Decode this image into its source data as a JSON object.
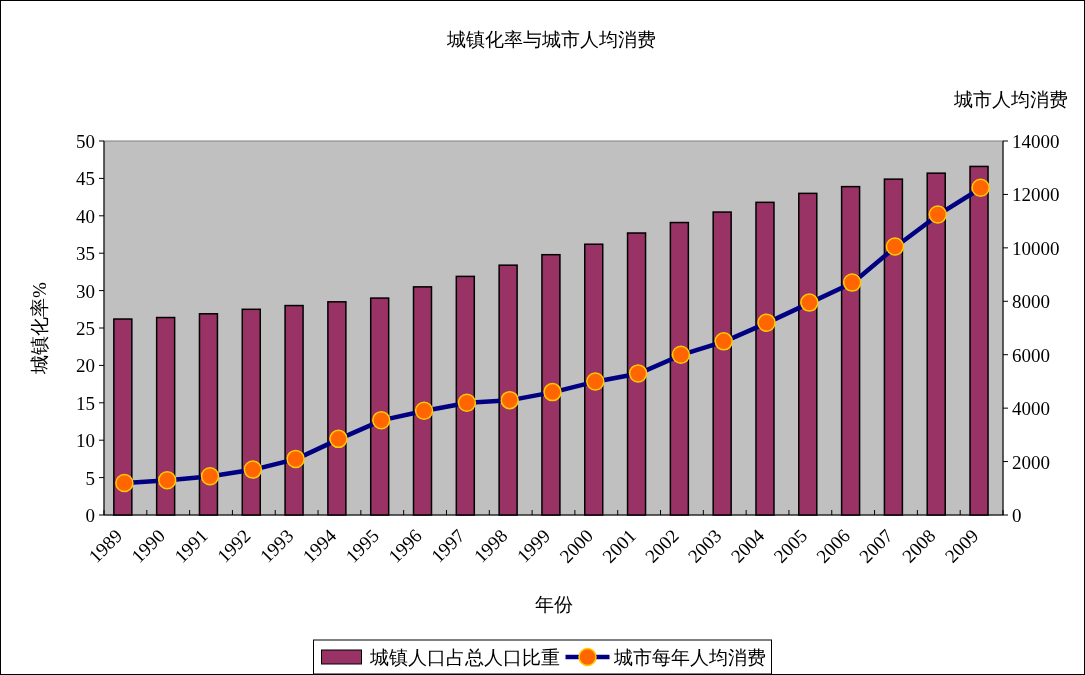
{
  "chart_data": {
    "type": "bar",
    "title": "城镇化率与城市人均消费",
    "xlabel": "年份",
    "ylabel": "城镇化率%",
    "y2label": "城市人均消费",
    "categories": [
      "1989",
      "1990",
      "1991",
      "1992",
      "1993",
      "1994",
      "1995",
      "1996",
      "1997",
      "1998",
      "1999",
      "2000",
      "2001",
      "2002",
      "2003",
      "2004",
      "2005",
      "2006",
      "2007",
      "2008",
      "2009"
    ],
    "series": [
      {
        "name": "城镇人口占总人口比重",
        "color": "#993366",
        "values": [
          26.2,
          26.4,
          26.9,
          27.5,
          28.0,
          28.5,
          29.0,
          30.5,
          31.9,
          33.4,
          34.8,
          36.2,
          37.7,
          39.1,
          40.5,
          41.8,
          43.0,
          43.9,
          44.9,
          45.7,
          46.6
        ]
      },
      {
        "name": "城市每年人均消费",
        "type": "line",
        "axis": "y2",
        "color": "#000080",
        "marker": "circle",
        "values": [
          1200,
          1300,
          1450,
          1700,
          2100,
          2850,
          3550,
          3900,
          4200,
          4300,
          4600,
          5000,
          5300,
          6000,
          6500,
          7200,
          7950,
          8700,
          10050,
          11250,
          12250
        ]
      }
    ],
    "ylim": [
      0,
      50
    ],
    "yticks": [
      0,
      5,
      10,
      15,
      20,
      25,
      30,
      35,
      40,
      45,
      50
    ],
    "y2lim": [
      0,
      14000
    ],
    "y2ticks": [
      0,
      2000,
      4000,
      6000,
      8000,
      10000,
      12000,
      14000
    ],
    "grid": false,
    "legend": "bottom"
  }
}
